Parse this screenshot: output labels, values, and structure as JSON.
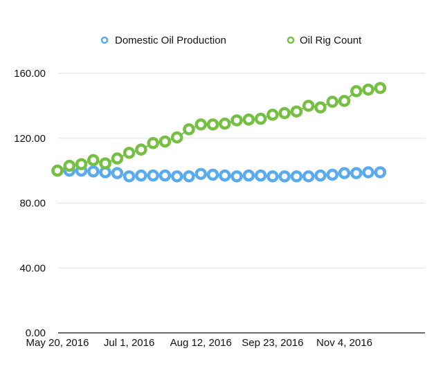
{
  "chart_data": {
    "type": "line",
    "title": "",
    "xlabel": "",
    "ylabel": "",
    "ylim": [
      0,
      160
    ],
    "y_ticks": [
      "0.00",
      "40.00",
      "80.00",
      "120.00",
      "160.00"
    ],
    "x_tick_labels": [
      "May 20, 2016",
      "Jul 1, 2016",
      "Aug 12, 2016",
      "Sep 23, 2016",
      "Nov 4, 2016"
    ],
    "x_dates": [
      "2016-05-20",
      "2016-05-27",
      "2016-06-03",
      "2016-06-10",
      "2016-06-17",
      "2016-06-24",
      "2016-07-01",
      "2016-07-08",
      "2016-07-15",
      "2016-07-22",
      "2016-07-29",
      "2016-08-05",
      "2016-08-12",
      "2016-08-19",
      "2016-08-26",
      "2016-09-02",
      "2016-09-09",
      "2016-09-16",
      "2016-09-23",
      "2016-09-30",
      "2016-10-07",
      "2016-10-14",
      "2016-10-21",
      "2016-10-28",
      "2016-11-04",
      "2016-11-11",
      "2016-11-18",
      "2016-11-25"
    ],
    "grid": true,
    "legend_position": "top",
    "series": [
      {
        "name": "Domestic Oil Production",
        "color": "#5aabee",
        "values": [
          100,
          100,
          100,
          99.5,
          99,
          98.5,
          96.5,
          97,
          97,
          97,
          96.5,
          96.5,
          98,
          97.5,
          97,
          96.5,
          97,
          97,
          96.5,
          96.5,
          96.5,
          96.5,
          97,
          97.5,
          98.5,
          98.5,
          99,
          99
        ]
      },
      {
        "name": "Oil Rig Count",
        "color": "#75c043",
        "values": [
          100,
          103,
          104,
          106.5,
          104.5,
          107.5,
          111,
          113,
          117,
          118,
          120.5,
          125.5,
          128.5,
          128.5,
          129,
          131,
          131.5,
          132,
          134.5,
          135.5,
          136.5,
          140,
          139,
          142.5,
          143,
          149,
          150,
          151
        ]
      }
    ]
  }
}
